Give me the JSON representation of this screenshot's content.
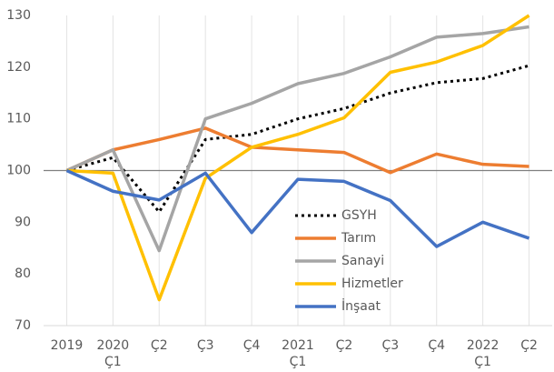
{
  "chart_data": {
    "type": "line",
    "categories": [
      [
        "2019"
      ],
      [
        "2020",
        "Ç1"
      ],
      [
        "Ç2"
      ],
      [
        "Ç3"
      ],
      [
        "Ç4"
      ],
      [
        "2021",
        "Ç1"
      ],
      [
        "Ç2"
      ],
      [
        "Ç3"
      ],
      [
        "Ç4"
      ],
      [
        "2022",
        "Ç1"
      ],
      [
        "Ç2"
      ]
    ],
    "series": [
      {
        "name": "GSYH",
        "color": "#000000",
        "dashed": true,
        "values": [
          100,
          102.5,
          92,
          106,
          107,
          110,
          112,
          115,
          117,
          117.8,
          120.3
        ]
      },
      {
        "name": "Tarım",
        "color": "#ed7d31",
        "values": [
          100,
          104,
          106,
          108.2,
          104.5,
          104,
          103.5,
          99.6,
          103.2,
          101.2,
          100.8
        ]
      },
      {
        "name": "Sanayi",
        "color": "#a5a5a5",
        "values": [
          100,
          104,
          84.5,
          110,
          113,
          116.8,
          118.8,
          122,
          125.8,
          126.5,
          127.8
        ]
      },
      {
        "name": "Hizmetler",
        "color": "#ffc000",
        "values": [
          100,
          99.5,
          75,
          98.5,
          104.5,
          107,
          110.2,
          119,
          121,
          124.2,
          130
        ]
      },
      {
        "name": "İnşaat",
        "color": "#4472c4",
        "values": [
          100,
          96,
          94.3,
          99.5,
          88,
          98.3,
          97.9,
          94.2,
          85.3,
          90,
          86.9
        ]
      }
    ],
    "ylim": [
      70,
      130
    ],
    "yticks": [
      70,
      80,
      90,
      100,
      110,
      120,
      130
    ],
    "baseline": 100,
    "grid": "x",
    "legend": "lower right"
  }
}
